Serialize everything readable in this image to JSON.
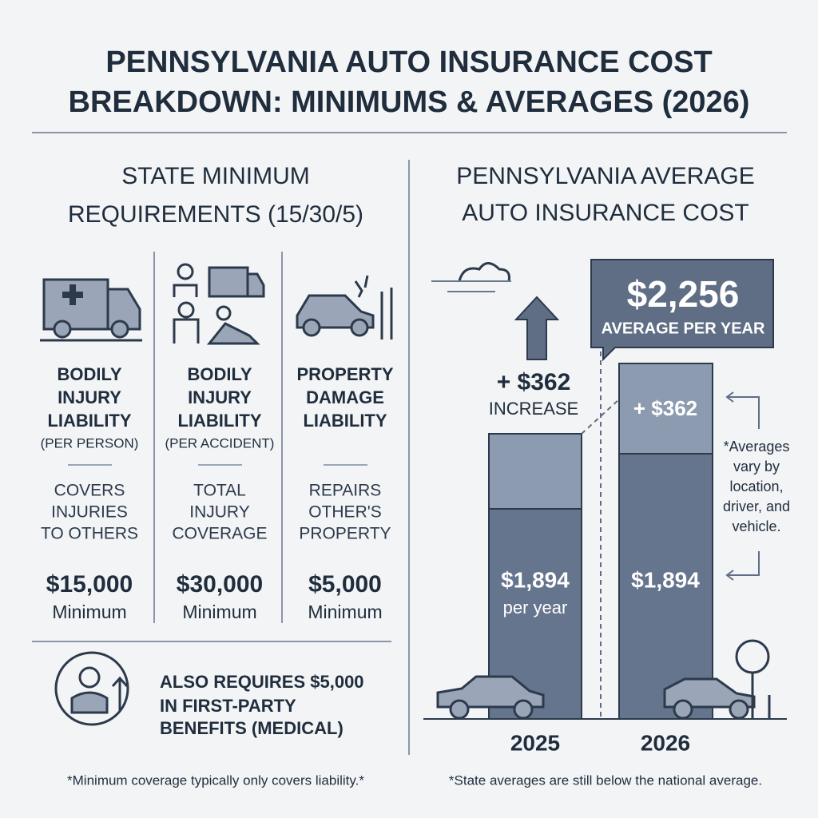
{
  "header": {
    "title_lines": [
      "PENNSYLVANIA AUTO INSURANCE COST",
      "BREAKDOWN: MINIMUMS & AVERAGES (2026)"
    ]
  },
  "left": {
    "heading_lines": [
      "STATE MINIMUM",
      "REQUIREMENTS (15/30/5)"
    ],
    "columns": [
      {
        "title_lines": [
          "BODILY",
          "INJURY",
          "LIABILITY"
        ],
        "sub": "(PER PERSON)",
        "desc_lines": [
          "COVERS",
          "INJURIES",
          "TO OTHERS"
        ],
        "amount": "$15,000",
        "amount_note": "Minimum"
      },
      {
        "title_lines": [
          "BODILY",
          "INJURY",
          "LIABILITY"
        ],
        "sub": "(PER ACCIDENT)",
        "desc_lines": [
          "TOTAL",
          "INJURY",
          "COVERAGE"
        ],
        "amount": "$30,000",
        "amount_note": "Minimum"
      },
      {
        "title_lines": [
          "PROPERTY",
          "DAMAGE",
          "LIABILITY"
        ],
        "desc_lines": [
          "REPAIRS",
          "OTHER'S",
          "PROPERTY"
        ],
        "amount": "$5,000",
        "amount_note": "Minimum"
      }
    ],
    "extra_lines": [
      "ALSO REQUIRES $5,000",
      "IN FIRST-PARTY",
      "BENEFITS (MEDICAL)"
    ],
    "footnote": "*Minimum coverage typically only covers liability.*"
  },
  "right": {
    "heading_lines": [
      "PENNSYLVANIA AVERAGE",
      "AUTO INSURANCE COST"
    ],
    "callout": {
      "value": "$2,256",
      "label": "AVERAGE PER YEAR"
    },
    "increase": {
      "value": "+ $362",
      "label": "INCREASE"
    },
    "bars": [
      {
        "year": "2025",
        "base_label": "$1,894",
        "note": "per year"
      },
      {
        "year": "2026",
        "top_label": "+ $362",
        "base_label": "$1,894"
      }
    ],
    "note_lines": [
      "*Averages",
      "vary by",
      "location,",
      "driver, and",
      "vehicle."
    ],
    "footnote": "*State averages are still below the national average."
  }
}
